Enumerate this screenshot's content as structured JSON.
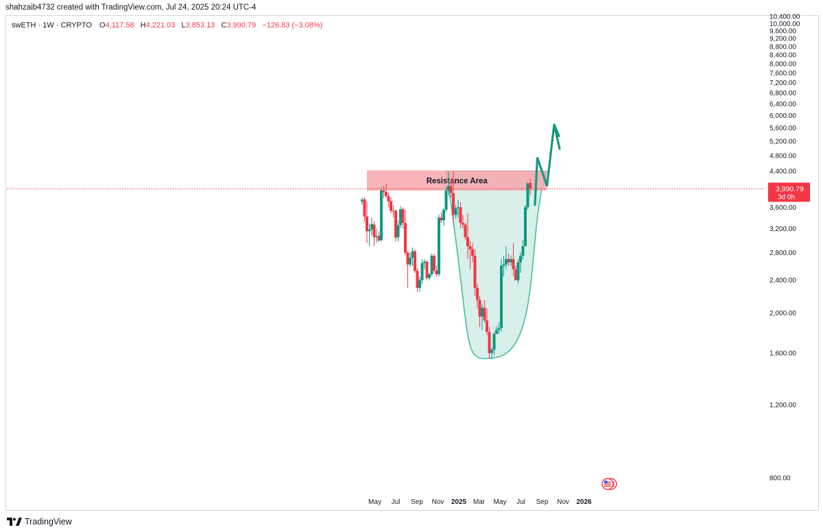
{
  "header": {
    "credit": "shahzaib4732 created with TradingView.com, Jul 24, 2025 20:24 UTC-4",
    "symbol": "swETH · 1W · CRYPTO",
    "open_label": "O",
    "open": "4,117.58",
    "high_label": "H",
    "high": "4,221.03",
    "low_label": "L",
    "low": "3,853.13",
    "close_label": "C",
    "close": "3,990.79",
    "change": "−126.83 (−3.08%)"
  },
  "price_tag": {
    "price": "3,990.79",
    "countdown": "3d 0h"
  },
  "footer": {
    "brand": "TradingView"
  },
  "colors": {
    "up": "#089981",
    "down": "#f23645",
    "resistance_fill": "#f7a1a8",
    "cup_fill": "#d8efea",
    "cup_stroke": "#5bc0a8",
    "arrow": "#17977f",
    "grid": "#ffffff",
    "axis_text": "#131722"
  },
  "chart_data": {
    "type": "candlestick",
    "symbol": "swETH",
    "interval": "1W",
    "y_axis": {
      "scale": "log",
      "ticks": [
        "800.00",
        "1,200.00",
        "1,600.00",
        "2,000.00",
        "2,400.00",
        "2,800.00",
        "3,200.00",
        "3,600.00",
        "4,000.00",
        "4,400.00",
        "4,800.00",
        "5,200.00",
        "5,600.00",
        "6,000.00",
        "6,400.00",
        "6,800.00",
        "7,200.00",
        "7,600.00",
        "8,000.00",
        "8,400.00",
        "8,800.00",
        "9,200.00",
        "9,600.00",
        "10,000.00",
        "10,400.00"
      ],
      "tick_values": [
        800,
        1200,
        1600,
        2000,
        2400,
        2800,
        3200,
        3600,
        4000,
        4400,
        4800,
        5200,
        5600,
        6000,
        6400,
        6800,
        7200,
        7600,
        8000,
        8400,
        8800,
        9200,
        9600,
        10000,
        10400
      ]
    },
    "x_axis": {
      "ticks": [
        {
          "label": "May",
          "date": "2024-05-01",
          "bold": false
        },
        {
          "label": "Jul",
          "date": "2024-07-01",
          "bold": false
        },
        {
          "label": "Sep",
          "date": "2024-09-01",
          "bold": false
        },
        {
          "label": "Nov",
          "date": "2024-11-01",
          "bold": false
        },
        {
          "label": "2025",
          "date": "2025-01-01",
          "bold": true
        },
        {
          "label": "Mar",
          "date": "2025-03-01",
          "bold": false
        },
        {
          "label": "May",
          "date": "2025-05-01",
          "bold": false
        },
        {
          "label": "Jul",
          "date": "2025-07-01",
          "bold": false
        },
        {
          "label": "Sep",
          "date": "2025-09-01",
          "bold": false
        },
        {
          "label": "Nov",
          "date": "2025-11-01",
          "bold": false
        },
        {
          "label": "2026",
          "date": "2026-01-01",
          "bold": true
        }
      ]
    },
    "candles": [
      {
        "date": "2024-03-25",
        "o": 3720,
        "h": 3800,
        "l": 3650,
        "c": 3760
      },
      {
        "date": "2024-04-01",
        "o": 3760,
        "h": 3810,
        "l": 3320,
        "c": 3420
      },
      {
        "date": "2024-04-08",
        "o": 3420,
        "h": 3720,
        "l": 2950,
        "c": 3150
      },
      {
        "date": "2024-04-15",
        "o": 3150,
        "h": 3290,
        "l": 2900,
        "c": 3180
      },
      {
        "date": "2024-04-22",
        "o": 3180,
        "h": 3400,
        "l": 3080,
        "c": 3280
      },
      {
        "date": "2024-04-29",
        "o": 3270,
        "h": 3330,
        "l": 2900,
        "c": 3050
      },
      {
        "date": "2024-05-06",
        "o": 3050,
        "h": 3200,
        "l": 2950,
        "c": 3070
      },
      {
        "date": "2024-05-13",
        "o": 3070,
        "h": 3150,
        "l": 2980,
        "c": 2990
      },
      {
        "date": "2024-05-20",
        "o": 3000,
        "h": 4020,
        "l": 2980,
        "c": 3950
      },
      {
        "date": "2024-05-27",
        "o": 3950,
        "h": 4050,
        "l": 3780,
        "c": 3920
      },
      {
        "date": "2024-06-03",
        "o": 3920,
        "h": 4110,
        "l": 3800,
        "c": 3830
      },
      {
        "date": "2024-06-10",
        "o": 3830,
        "h": 3900,
        "l": 3600,
        "c": 3720
      },
      {
        "date": "2024-06-17",
        "o": 3720,
        "h": 3800,
        "l": 3480,
        "c": 3530
      },
      {
        "date": "2024-06-24",
        "o": 3530,
        "h": 3640,
        "l": 3400,
        "c": 3520
      },
      {
        "date": "2024-07-01",
        "o": 3530,
        "h": 3560,
        "l": 2980,
        "c": 3040
      },
      {
        "date": "2024-07-08",
        "o": 3050,
        "h": 3350,
        "l": 2980,
        "c": 3260
      },
      {
        "date": "2024-07-15",
        "o": 3260,
        "h": 3620,
        "l": 3200,
        "c": 3560
      },
      {
        "date": "2024-07-22",
        "o": 3560,
        "h": 3600,
        "l": 3200,
        "c": 3300
      },
      {
        "date": "2024-07-29",
        "o": 3300,
        "h": 3550,
        "l": 2750,
        "c": 2800
      },
      {
        "date": "2024-08-05",
        "o": 2800,
        "h": 2820,
        "l": 2300,
        "c": 2620
      },
      {
        "date": "2024-08-12",
        "o": 2620,
        "h": 2800,
        "l": 2580,
        "c": 2720
      },
      {
        "date": "2024-08-19",
        "o": 2720,
        "h": 2880,
        "l": 2600,
        "c": 2820
      },
      {
        "date": "2024-08-26",
        "o": 2820,
        "h": 2850,
        "l": 2500,
        "c": 2530
      },
      {
        "date": "2024-09-02",
        "o": 2530,
        "h": 2570,
        "l": 2250,
        "c": 2300
      },
      {
        "date": "2024-09-09",
        "o": 2300,
        "h": 2450,
        "l": 2250,
        "c": 2400
      },
      {
        "date": "2024-09-16",
        "o": 2400,
        "h": 2700,
        "l": 2350,
        "c": 2640
      },
      {
        "date": "2024-09-23",
        "o": 2640,
        "h": 2700,
        "l": 2550,
        "c": 2660
      },
      {
        "date": "2024-09-30",
        "o": 2660,
        "h": 2680,
        "l": 2400,
        "c": 2430
      },
      {
        "date": "2024-10-07",
        "o": 2430,
        "h": 2500,
        "l": 2400,
        "c": 2480
      },
      {
        "date": "2024-10-14",
        "o": 2480,
        "h": 2780,
        "l": 2450,
        "c": 2750
      },
      {
        "date": "2024-10-21",
        "o": 2750,
        "h": 2780,
        "l": 2500,
        "c": 2530
      },
      {
        "date": "2024-10-28",
        "o": 2530,
        "h": 2600,
        "l": 2450,
        "c": 2480
      },
      {
        "date": "2024-11-04",
        "o": 2480,
        "h": 3460,
        "l": 2450,
        "c": 3400
      },
      {
        "date": "2024-11-11",
        "o": 3400,
        "h": 3500,
        "l": 3300,
        "c": 3350
      },
      {
        "date": "2024-11-18",
        "o": 3350,
        "h": 3590,
        "l": 3250,
        "c": 3550
      },
      {
        "date": "2024-11-25",
        "o": 3550,
        "h": 4040,
        "l": 3500,
        "c": 3950
      },
      {
        "date": "2024-12-02",
        "o": 3950,
        "h": 4400,
        "l": 3850,
        "c": 4050
      },
      {
        "date": "2024-12-09",
        "o": 4050,
        "h": 4210,
        "l": 3800,
        "c": 3900
      },
      {
        "date": "2024-12-16",
        "o": 3900,
        "h": 4400,
        "l": 3300,
        "c": 3450
      },
      {
        "date": "2024-12-23",
        "o": 3450,
        "h": 3650,
        "l": 3380,
        "c": 3580
      },
      {
        "date": "2024-12-30",
        "o": 3580,
        "h": 3750,
        "l": 3400,
        "c": 3600
      },
      {
        "date": "2025-01-06",
        "o": 3600,
        "h": 3700,
        "l": 3200,
        "c": 3300
      },
      {
        "date": "2025-01-13",
        "o": 3300,
        "h": 3450,
        "l": 3200,
        "c": 3270
      },
      {
        "date": "2025-01-20",
        "o": 3270,
        "h": 3300,
        "l": 3000,
        "c": 3050
      },
      {
        "date": "2025-01-27",
        "o": 3050,
        "h": 3480,
        "l": 2700,
        "c": 2900
      },
      {
        "date": "2025-02-03",
        "o": 2900,
        "h": 2980,
        "l": 2550,
        "c": 2850
      },
      {
        "date": "2025-02-10",
        "o": 2850,
        "h": 2950,
        "l": 2650,
        "c": 2750
      },
      {
        "date": "2025-02-17",
        "o": 2750,
        "h": 2850,
        "l": 2200,
        "c": 2300
      },
      {
        "date": "2025-02-24",
        "o": 2300,
        "h": 2350,
        "l": 2050,
        "c": 2150
      },
      {
        "date": "2025-03-03",
        "o": 2150,
        "h": 2200,
        "l": 1850,
        "c": 1960
      },
      {
        "date": "2025-03-10",
        "o": 1960,
        "h": 2100,
        "l": 1820,
        "c": 2060
      },
      {
        "date": "2025-03-17",
        "o": 2060,
        "h": 2150,
        "l": 1900,
        "c": 1920
      },
      {
        "date": "2025-03-24",
        "o": 1920,
        "h": 2050,
        "l": 1770,
        "c": 1800
      },
      {
        "date": "2025-03-31",
        "o": 1800,
        "h": 1850,
        "l": 1550,
        "c": 1600
      },
      {
        "date": "2025-04-07",
        "o": 1600,
        "h": 1650,
        "l": 1550,
        "c": 1630
      },
      {
        "date": "2025-04-14",
        "o": 1630,
        "h": 1800,
        "l": 1580,
        "c": 1780
      },
      {
        "date": "2025-04-21",
        "o": 1780,
        "h": 1860,
        "l": 1780,
        "c": 1820
      },
      {
        "date": "2025-04-28",
        "o": 1820,
        "h": 1900,
        "l": 1780,
        "c": 1840
      },
      {
        "date": "2025-05-05",
        "o": 1840,
        "h": 2700,
        "l": 1800,
        "c": 2600
      },
      {
        "date": "2025-05-12",
        "o": 2600,
        "h": 2750,
        "l": 2450,
        "c": 2620
      },
      {
        "date": "2025-05-19",
        "o": 2620,
        "h": 2900,
        "l": 2550,
        "c": 2700
      },
      {
        "date": "2025-05-26",
        "o": 2700,
        "h": 2780,
        "l": 2600,
        "c": 2650
      },
      {
        "date": "2025-06-02",
        "o": 2650,
        "h": 2750,
        "l": 2600,
        "c": 2700
      },
      {
        "date": "2025-06-09",
        "o": 2700,
        "h": 2950,
        "l": 2450,
        "c": 2550
      },
      {
        "date": "2025-06-16",
        "o": 2550,
        "h": 2600,
        "l": 2400,
        "c": 2400
      },
      {
        "date": "2025-06-23",
        "o": 2400,
        "h": 2700,
        "l": 2350,
        "c": 2650
      },
      {
        "date": "2025-06-30",
        "o": 2650,
        "h": 2800,
        "l": 2500,
        "c": 2750
      },
      {
        "date": "2025-07-07",
        "o": 2750,
        "h": 3000,
        "l": 2700,
        "c": 2900
      },
      {
        "date": "2025-07-14",
        "o": 2900,
        "h": 3650,
        "l": 2900,
        "c": 3600
      },
      {
        "date": "2025-07-21",
        "o": 3600,
        "h": 4110,
        "l": 3550,
        "c": 4117.58
      },
      {
        "date": "2025-07-28",
        "o": 4117.58,
        "h": 4221.03,
        "l": 3853.13,
        "c": 3990.79
      }
    ],
    "annotations": {
      "resistance_area": {
        "label": "Resistance Area",
        "low": 3950,
        "high": 4420,
        "from": "2024-04-08",
        "to": "2025-09-15"
      },
      "cup": {
        "from": "2024-11-25",
        "bottom": "2025-04-14",
        "to": "2025-09-15",
        "top_price": 4400,
        "bottom_price": 1560
      },
      "arrow_path": [
        {
          "date": "2025-08-11",
          "price": 3650
        },
        {
          "date": "2025-08-18",
          "price": 4750
        },
        {
          "date": "2025-09-15",
          "price": 4050
        },
        {
          "date": "2025-10-06",
          "price": 5700
        },
        {
          "date": "2025-10-20",
          "price": 5350
        }
      ]
    },
    "last_price": 3990.79
  }
}
